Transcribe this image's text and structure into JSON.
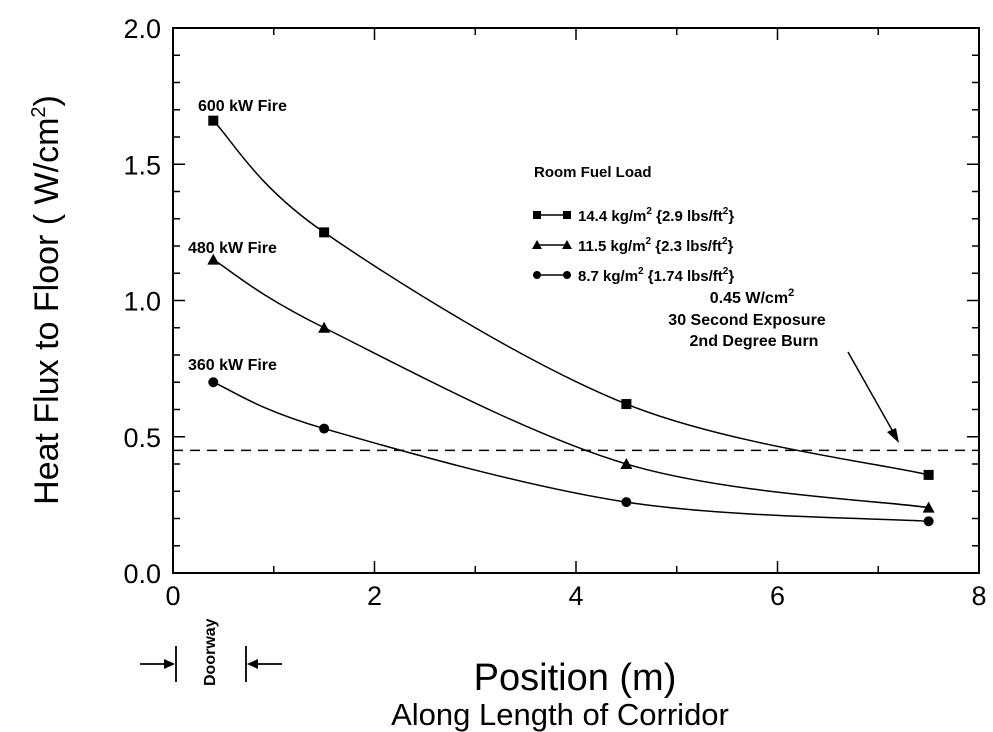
{
  "chart_data": {
    "type": "line",
    "title": "",
    "xlabel": "Position (m)",
    "xlabel_sub": "Along Length of Corridor",
    "ylabel_main": "Heat Flux to Floor ( W/cm",
    "ylabel_sup": "2",
    "ylabel_end": ")",
    "xlim": [
      0,
      8
    ],
    "ylim": [
      0,
      2.0
    ],
    "xticks": [
      0,
      2,
      4,
      6,
      8
    ],
    "xtick_labels": [
      "0",
      "2",
      "4",
      "6",
      "8"
    ],
    "yticks": [
      0.0,
      0.5,
      1.0,
      1.5,
      2.0
    ],
    "ytick_labels": [
      "0.0",
      "0.5",
      "1.0",
      "1.5",
      "2.0"
    ],
    "grid": false,
    "legend_title": "Room Fuel Load",
    "legend_position": "top-right",
    "series": [
      {
        "marker": "square",
        "legend": {
          "a": "14.4 kg/m",
          "b": "2",
          "c": " {2.9 lbs/ft",
          "d": "2",
          "e": "}"
        },
        "label": "600 kW Fire",
        "x": [
          0.4,
          1.5,
          4.5,
          7.5
        ],
        "y": [
          1.66,
          1.25,
          0.62,
          0.36
        ]
      },
      {
        "marker": "triangle",
        "legend": {
          "a": "11.5 kg/m",
          "b": "2",
          "c": " {2.3 lbs/ft",
          "d": "2",
          "e": "}"
        },
        "label": "480 kW Fire",
        "x": [
          0.4,
          1.5,
          4.5,
          7.5
        ],
        "y": [
          1.15,
          0.9,
          0.4,
          0.24
        ]
      },
      {
        "marker": "circle",
        "legend": {
          "a": "8.7 kg/m",
          "b": "2",
          "c": " {1.74 lbs/ft",
          "d": "2",
          "e": "}"
        },
        "label": "360 kW Fire",
        "x": [
          0.4,
          1.5,
          4.5,
          7.5
        ],
        "y": [
          0.7,
          0.53,
          0.26,
          0.19
        ]
      }
    ],
    "reference_line": {
      "y": 0.45,
      "style": "dashed",
      "label_line1_a": "0.45 W/cm",
      "label_line1_sup": "2",
      "label_line2": "30 Second Exposure",
      "label_line3": "2nd Degree Burn"
    },
    "doorway": {
      "label": "Doorway",
      "x_range": [
        0.4,
        0.7
      ]
    }
  }
}
